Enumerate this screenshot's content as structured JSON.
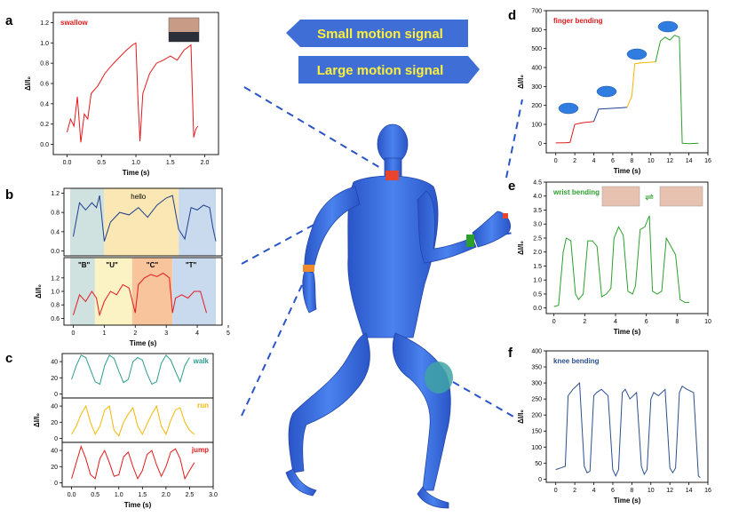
{
  "banners": {
    "small": "Small motion signal",
    "large": "Large motion signal"
  },
  "colors": {
    "banner": "#3f6fd6",
    "body": "#3a6ee0",
    "red": "#e41a1c",
    "navy": "#1f3f8f",
    "teal": "#2a9d8f",
    "gold": "#f2b705",
    "green": "#2ca02c",
    "blue2": "#2b4f8e"
  },
  "chart_data": [
    {
      "panel": "a",
      "type": "line",
      "title": "swallow",
      "xlabel": "Time (s)",
      "ylabel": "ΔI/I₀",
      "xlim": [
        -0.2,
        2.2
      ],
      "ylim": [
        -0.1,
        1.3
      ],
      "xticks": [
        "0.0",
        "0.5",
        "1.0",
        "1.5",
        "2.0"
      ],
      "xtickvals": [
        0,
        0.5,
        1,
        1.5,
        2
      ],
      "yticks": [
        "0.0",
        "0.2",
        "0.4",
        "0.6",
        "0.8",
        "1.0",
        "1.2"
      ],
      "ytickvals": [
        0,
        0.2,
        0.4,
        0.6,
        0.8,
        1.0,
        1.2
      ],
      "series": [
        {
          "color": "#e41a1c",
          "x": [
            0,
            0.05,
            0.1,
            0.15,
            0.2,
            0.25,
            0.3,
            0.35,
            0.45,
            0.55,
            0.65,
            0.75,
            0.85,
            0.95,
            1.0,
            1.03,
            1.06,
            1.1,
            1.2,
            1.3,
            1.4,
            1.5,
            1.6,
            1.7,
            1.8,
            1.84,
            1.87,
            1.9
          ],
          "y": [
            0.12,
            0.25,
            0.18,
            0.47,
            0.02,
            0.3,
            0.25,
            0.5,
            0.58,
            0.7,
            0.78,
            0.85,
            0.92,
            0.98,
            1.0,
            0.45,
            0.03,
            0.5,
            0.7,
            0.8,
            0.83,
            0.87,
            0.83,
            0.93,
            0.98,
            0.07,
            0.15,
            0.18
          ]
        }
      ]
    },
    {
      "panel": "b-top",
      "type": "line",
      "annotation": "hello",
      "xlim": [
        -0.3,
        4.8
      ],
      "ylim": [
        -0.1,
        1.3
      ],
      "yticks": [
        "0.0",
        "0.4",
        "0.8",
        "1.2"
      ],
      "ytickvals": [
        0,
        0.4,
        0.8,
        1.2
      ],
      "series": [
        {
          "color": "#1f3f8f",
          "x": [
            0,
            0.2,
            0.4,
            0.6,
            0.75,
            0.85,
            1.0,
            1.2,
            1.5,
            1.8,
            2.1,
            2.4,
            2.7,
            3.0,
            3.2,
            3.4,
            3.6,
            3.8,
            4.0,
            4.2,
            4.4,
            4.5,
            4.6
          ],
          "y": [
            0.3,
            1.0,
            0.85,
            1.0,
            0.9,
            1.15,
            0.2,
            0.6,
            0.8,
            0.75,
            0.9,
            0.7,
            0.95,
            1.1,
            1.15,
            0.45,
            0.25,
            0.9,
            0.85,
            0.95,
            0.9,
            0.5,
            0.2
          ]
        }
      ]
    },
    {
      "panel": "b-bottom",
      "type": "line",
      "xlabel": "Time (s)",
      "ylabel": "ΔI/I₀",
      "xlim": [
        -0.3,
        4.8
      ],
      "ylim": [
        0.5,
        1.5
      ],
      "xticks": [
        "0",
        "1",
        "2",
        "3",
        "4",
        "5"
      ],
      "xtickvals": [
        0,
        1,
        2,
        3,
        4,
        5
      ],
      "yticks": [
        "0.6",
        "0.8",
        "1.0",
        "1.2"
      ],
      "ytickvals": [
        0.6,
        0.8,
        1.0,
        1.2
      ],
      "letters": [
        "\"B\"",
        "\"U\"",
        "\"C\"",
        "\"T\""
      ],
      "series": [
        {
          "color": "#e41a1c",
          "x": [
            0,
            0.2,
            0.4,
            0.6,
            0.75,
            0.85,
            1.0,
            1.2,
            1.4,
            1.6,
            1.8,
            2.0,
            2.1,
            2.3,
            2.5,
            2.7,
            2.9,
            3.1,
            3.2,
            3.3,
            3.5,
            3.7,
            3.9,
            4.1,
            4.3
          ],
          "y": [
            0.65,
            0.95,
            0.85,
            1.0,
            0.9,
            0.65,
            0.85,
            1.0,
            0.95,
            1.1,
            1.05,
            0.68,
            1.1,
            1.2,
            1.25,
            1.22,
            1.27,
            1.2,
            0.68,
            0.9,
            0.95,
            0.9,
            1.0,
            1.0,
            0.68
          ]
        }
      ]
    },
    {
      "panel": "c",
      "type": "line",
      "xlabel": "Time (s)",
      "ylabel": "ΔI/I₀",
      "xlim": [
        -0.2,
        3.0
      ],
      "xticks": [
        "0.0",
        "0.5",
        "1.0",
        "1.5",
        "2.0",
        "2.5",
        "3.0"
      ],
      "xtickvals": [
        0,
        0.5,
        1,
        1.5,
        2,
        2.5,
        3
      ],
      "yticks": [
        "0",
        "20",
        "40"
      ],
      "ytickvals": [
        0,
        20,
        40
      ],
      "series": [
        {
          "name": "walk",
          "color": "#2a9d8f",
          "x": [
            0,
            0.1,
            0.2,
            0.3,
            0.4,
            0.5,
            0.6,
            0.7,
            0.8,
            0.9,
            1.0,
            1.1,
            1.2,
            1.3,
            1.4,
            1.5,
            1.6,
            1.7,
            1.8,
            1.9,
            2.0,
            2.1,
            2.2,
            2.3,
            2.4,
            2.5
          ],
          "y": [
            18,
            35,
            48,
            45,
            30,
            15,
            12,
            35,
            48,
            44,
            28,
            14,
            18,
            40,
            45,
            42,
            25,
            12,
            15,
            38,
            48,
            42,
            28,
            15,
            35,
            45
          ]
        },
        {
          "name": "run",
          "color": "#f2b705",
          "x": [
            0,
            0.1,
            0.2,
            0.3,
            0.4,
            0.5,
            0.6,
            0.7,
            0.8,
            0.9,
            1.0,
            1.1,
            1.2,
            1.3,
            1.4,
            1.5,
            1.6,
            1.7,
            1.8,
            1.9,
            2.0,
            2.1,
            2.2,
            2.3,
            2.4,
            2.5,
            2.6
          ],
          "y": [
            5,
            15,
            30,
            40,
            20,
            5,
            15,
            35,
            40,
            10,
            3,
            20,
            30,
            38,
            15,
            5,
            18,
            30,
            40,
            15,
            5,
            22,
            35,
            38,
            20,
            10,
            5
          ]
        },
        {
          "name": "jump",
          "color": "#e41a1c",
          "x": [
            0,
            0.1,
            0.2,
            0.3,
            0.4,
            0.5,
            0.6,
            0.7,
            0.8,
            0.9,
            1.0,
            1.1,
            1.2,
            1.3,
            1.4,
            1.5,
            1.6,
            1.7,
            1.8,
            1.9,
            2.0,
            2.1,
            2.2,
            2.3,
            2.4,
            2.5,
            2.6
          ],
          "y": [
            5,
            25,
            45,
            30,
            10,
            5,
            30,
            40,
            25,
            8,
            10,
            32,
            38,
            20,
            5,
            15,
            35,
            40,
            22,
            8,
            20,
            38,
            42,
            30,
            5,
            15,
            25
          ]
        }
      ]
    },
    {
      "panel": "d",
      "type": "line",
      "title": "finger bending",
      "xlabel": "Time (s)",
      "ylabel": "ΔI/I₀",
      "xlim": [
        -1,
        16
      ],
      "ylim": [
        -50,
        700
      ],
      "xticks": [
        "0",
        "2",
        "4",
        "6",
        "8",
        "10",
        "12",
        "14",
        "16"
      ],
      "xtickvals": [
        0,
        2,
        4,
        6,
        8,
        10,
        12,
        14,
        16
      ],
      "yticks": [
        "0",
        "100",
        "200",
        "300",
        "400",
        "500",
        "600",
        "700"
      ],
      "ytickvals": [
        0,
        100,
        200,
        300,
        400,
        500,
        600,
        700
      ],
      "series": [
        {
          "color": "#e41a1c",
          "x": [
            0,
            1,
            1.5,
            2,
            2.5,
            3,
            3.5,
            4
          ],
          "y": [
            2,
            3,
            5,
            100,
            105,
            110,
            112,
            115
          ]
        },
        {
          "color": "#1f3f8f",
          "x": [
            4,
            4.5,
            5,
            6,
            7,
            7.5
          ],
          "y": [
            115,
            180,
            182,
            185,
            188,
            190
          ]
        },
        {
          "color": "#f2b705",
          "x": [
            7.5,
            8,
            8.3,
            9,
            10,
            10.5
          ],
          "y": [
            190,
            250,
            420,
            425,
            428,
            430
          ]
        },
        {
          "color": "#2ca02c",
          "x": [
            10.5,
            11,
            11.5,
            12,
            12.5,
            13,
            13.3,
            14,
            15
          ],
          "y": [
            430,
            540,
            560,
            545,
            570,
            560,
            0,
            -2,
            0
          ]
        }
      ]
    },
    {
      "panel": "e",
      "type": "line",
      "title": "wrist bending",
      "xlabel": "Time (s)",
      "ylabel": "ΔI/I₀",
      "xlim": [
        -0.5,
        10
      ],
      "ylim": [
        -0.2,
        4.5
      ],
      "xticks": [
        "0",
        "2",
        "4",
        "6",
        "8",
        "10"
      ],
      "xtickvals": [
        0,
        2,
        4,
        6,
        8,
        10
      ],
      "yticks": [
        "0.0",
        "0.5",
        "1.0",
        "1.5",
        "2.0",
        "2.5",
        "3.0",
        "3.5",
        "4.0",
        "4.5"
      ],
      "ytickvals": [
        0,
        0.5,
        1,
        1.5,
        2,
        2.5,
        3,
        3.5,
        4,
        4.5
      ],
      "series": [
        {
          "color": "#2ca02c",
          "x": [
            0,
            0.3,
            0.6,
            0.8,
            1.1,
            1.4,
            1.6,
            1.9,
            2.2,
            2.5,
            2.8,
            3.1,
            3.4,
            3.7,
            3.9,
            4.2,
            4.5,
            4.8,
            5.1,
            5.3,
            5.6,
            5.9,
            6.2,
            6.4,
            6.7,
            7.0,
            7.3,
            7.6,
            7.9,
            8.2,
            8.5,
            8.8
          ],
          "y": [
            0.05,
            0.1,
            2.0,
            2.5,
            2.4,
            0.5,
            0.3,
            0.5,
            2.4,
            2.4,
            2.2,
            0.4,
            0.5,
            0.7,
            2.5,
            2.9,
            2.6,
            0.6,
            0.5,
            0.8,
            2.8,
            2.9,
            3.3,
            0.6,
            0.5,
            0.6,
            2.5,
            2.2,
            1.9,
            0.3,
            0.2,
            0.2
          ]
        }
      ]
    },
    {
      "panel": "f",
      "type": "line",
      "title": "knee bending",
      "xlabel": "Time (s)",
      "ylabel": "ΔI/I₀",
      "xlim": [
        -1,
        16
      ],
      "ylim": [
        -10,
        400
      ],
      "xticks": [
        "0",
        "2",
        "4",
        "6",
        "8",
        "10",
        "12",
        "14",
        "16"
      ],
      "xtickvals": [
        0,
        2,
        4,
        6,
        8,
        10,
        12,
        14,
        16
      ],
      "yticks": [
        "0",
        "50",
        "100",
        "150",
        "200",
        "250",
        "300",
        "350",
        "400"
      ],
      "ytickvals": [
        0,
        50,
        100,
        150,
        200,
        250,
        300,
        350,
        400
      ],
      "series": [
        {
          "color": "#2b4f8e",
          "x": [
            0,
            0.5,
            1,
            1.3,
            1.8,
            2.5,
            3,
            3.3,
            3.6,
            4,
            4.3,
            4.8,
            5.5,
            6,
            6.3,
            6.6,
            7,
            7.3,
            7.8,
            8.5,
            9,
            9.3,
            9.6,
            10,
            10.3,
            10.8,
            11.5,
            12,
            12.3,
            12.6,
            13,
            13.3,
            13.8,
            14.5,
            15,
            15.2
          ],
          "y": [
            30,
            35,
            40,
            260,
            280,
            300,
            40,
            20,
            25,
            260,
            270,
            280,
            260,
            30,
            10,
            30,
            270,
            280,
            250,
            270,
            40,
            15,
            30,
            250,
            270,
            260,
            280,
            35,
            20,
            35,
            270,
            290,
            280,
            270,
            10,
            5
          ]
        }
      ]
    }
  ]
}
